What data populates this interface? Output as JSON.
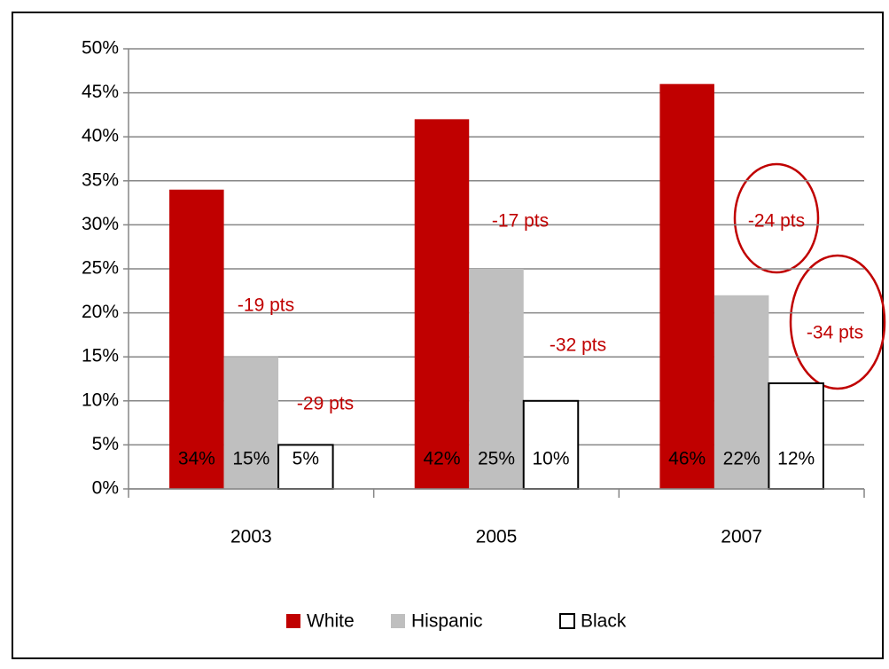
{
  "chart_data": {
    "type": "bar",
    "categories": [
      "2003",
      "2005",
      "2007"
    ],
    "series": [
      {
        "name": "White",
        "color": "#c00000",
        "values": [
          34,
          42,
          46
        ],
        "value_labels": [
          "34%",
          "42%",
          "46%"
        ]
      },
      {
        "name": "Hispanic",
        "color": "#bfbfbf",
        "values": [
          15,
          25,
          22
        ],
        "value_labels": [
          "15%",
          "25%",
          "22%"
        ]
      },
      {
        "name": "Black",
        "color": "#ffffff",
        "values": [
          5,
          10,
          12
        ],
        "value_labels": [
          "5%",
          "10%",
          "12%"
        ]
      }
    ],
    "ylim": [
      0,
      50
    ],
    "yticks": [
      {
        "value": 0,
        "label": "0%"
      },
      {
        "value": 5,
        "label": "5%"
      },
      {
        "value": 10,
        "label": "10%"
      },
      {
        "value": 15,
        "label": "15%"
      },
      {
        "value": 20,
        "label": "20%"
      },
      {
        "value": 25,
        "label": "25%"
      },
      {
        "value": 30,
        "label": "30%"
      },
      {
        "value": 35,
        "label": "35%"
      },
      {
        "value": 40,
        "label": "40%"
      },
      {
        "value": 45,
        "label": "45%"
      },
      {
        "value": 50,
        "label": "50%"
      }
    ],
    "grid": true,
    "legend": "bottom",
    "annotations": [
      "-19 pts",
      "-29 pts",
      "-17 pts",
      "-32 pts",
      "-24 pts",
      "-34 pts"
    ]
  }
}
